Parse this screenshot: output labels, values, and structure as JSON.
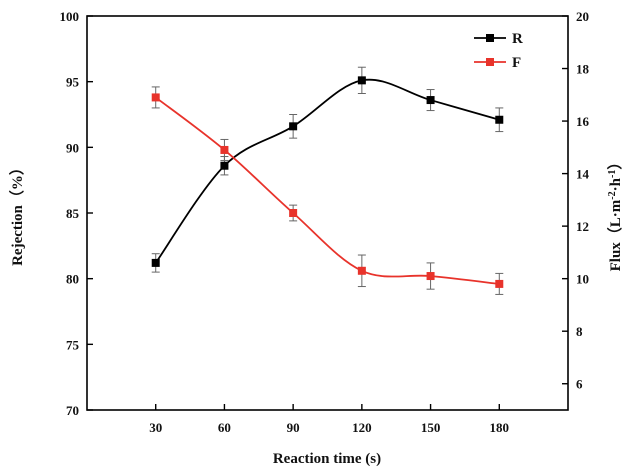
{
  "chart_data": {
    "type": "line",
    "title": "",
    "xlabel": "Reaction time (s)",
    "ylabel_left": "Rejection（%）",
    "ylabel_right": "Flux（L·m⁻²·h⁻¹）",
    "ylabel_right_parts": {
      "base": "Flux（L·m",
      "exp1": "-2",
      "mid": "·h",
      "exp2": "-1",
      "end": "）"
    },
    "x": [
      30,
      60,
      90,
      120,
      150,
      180
    ],
    "xlim": [
      0,
      210
    ],
    "xticks": [
      30,
      60,
      90,
      120,
      150,
      180
    ],
    "ylim_left": [
      70,
      100
    ],
    "yticks_left": [
      70,
      75,
      80,
      85,
      90,
      95,
      100
    ],
    "ylim_right": [
      5,
      20
    ],
    "yticks_right": [
      6,
      8,
      10,
      12,
      14,
      16,
      18,
      20
    ],
    "legend_position": "top-right",
    "grid": false,
    "series": [
      {
        "name": "R",
        "axis": "left",
        "color": "#000000",
        "values": [
          81.2,
          88.6,
          91.6,
          95.1,
          93.6,
          92.1
        ],
        "errors": [
          0.7,
          0.7,
          0.9,
          1.0,
          0.8,
          0.9
        ]
      },
      {
        "name": "F",
        "axis": "right",
        "color": "#e8332b",
        "values": [
          16.9,
          14.9,
          12.5,
          10.3,
          10.1,
          9.8
        ],
        "errors": [
          0.4,
          0.4,
          0.3,
          0.6,
          0.5,
          0.4
        ]
      }
    ]
  }
}
